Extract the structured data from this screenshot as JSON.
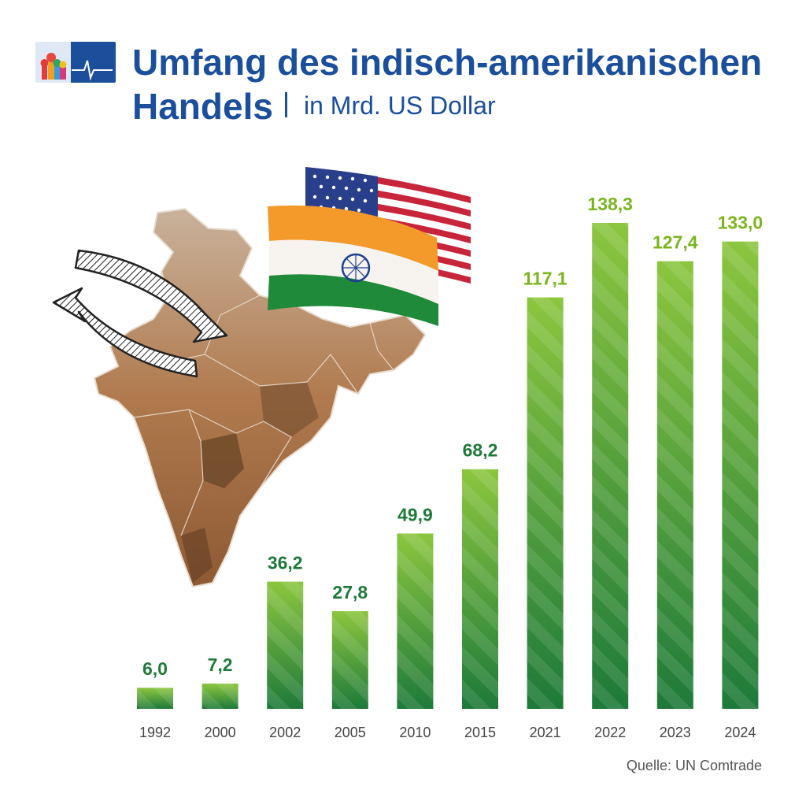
{
  "header": {
    "title_line1": "Umfang des indisch-amerikanischen",
    "title_line2": "Handels",
    "subtitle": "in Mrd. US Dollar"
  },
  "source": "Quelle: UN Comtrade",
  "colors": {
    "title": "#1b4f9c",
    "bar_top_light": "#8cc63f",
    "bar_bottom_dark": "#1e7a3a",
    "value_label_dark": "#1f7a3a",
    "value_label_light": "#7ab51d",
    "axis_label": "#444444"
  },
  "icons": [
    "logo-icon",
    "india-map-icon",
    "trade-arrows-icon",
    "usa-flag-icon",
    "india-flag-icon"
  ],
  "chart_data": {
    "type": "bar",
    "categories": [
      "1992",
      "2000",
      "2002",
      "2005",
      "2010",
      "2015",
      "2021",
      "2022",
      "2023",
      "2024"
    ],
    "values": [
      6.0,
      7.2,
      36.2,
      27.8,
      49.9,
      68.2,
      117.1,
      138.3,
      127.4,
      133.0
    ],
    "value_labels": [
      "6,0",
      "7,2",
      "36,2",
      "27,8",
      "49,9",
      "68,2",
      "117,1",
      "138,3",
      "127,4",
      "133,0"
    ],
    "title": "Umfang des indisch-amerikanischen Handels",
    "subtitle": "in Mrd. US Dollar",
    "xlabel": "",
    "ylabel": "",
    "ylim": [
      0,
      138.3
    ],
    "grid": false,
    "legend": "none"
  }
}
